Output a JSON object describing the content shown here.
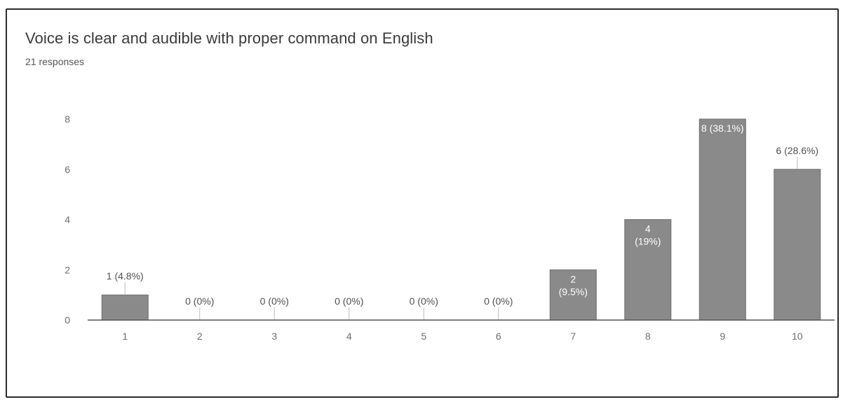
{
  "header": {
    "title": "Voice is clear and audible with proper command on English",
    "subtitle": "21 responses"
  },
  "colors": {
    "bar": "#8a8a8a",
    "baseline": "#555555",
    "tick_text": "#6d6d6d",
    "card_border": "#2b2b2b"
  },
  "chart_data": {
    "type": "bar",
    "title": "Voice is clear and audible with proper command on English",
    "subtitle": "21 responses",
    "xlabel": "",
    "ylabel": "",
    "categories": [
      "1",
      "2",
      "3",
      "4",
      "5",
      "6",
      "7",
      "8",
      "9",
      "10"
    ],
    "values": [
      1,
      0,
      0,
      0,
      0,
      0,
      2,
      4,
      8,
      6
    ],
    "data_labels": [
      [
        "1 (4.8%)"
      ],
      [
        "0 (0%)"
      ],
      [
        "0 (0%)"
      ],
      [
        "0 (0%)"
      ],
      [
        "0 (0%)"
      ],
      [
        "0 (0%)"
      ],
      [
        "2",
        "(9.5%)"
      ],
      [
        "4",
        "(19%)"
      ],
      [
        "8 (38.1%)"
      ],
      [
        "6 (28.6%)"
      ]
    ],
    "label_position": [
      "above",
      "above",
      "above",
      "above",
      "above",
      "above",
      "inside",
      "inside",
      "inside",
      "above"
    ],
    "yticks": [
      0,
      2,
      4,
      6,
      8
    ],
    "ylim": [
      0,
      8
    ],
    "grid": false,
    "legend": "none"
  }
}
